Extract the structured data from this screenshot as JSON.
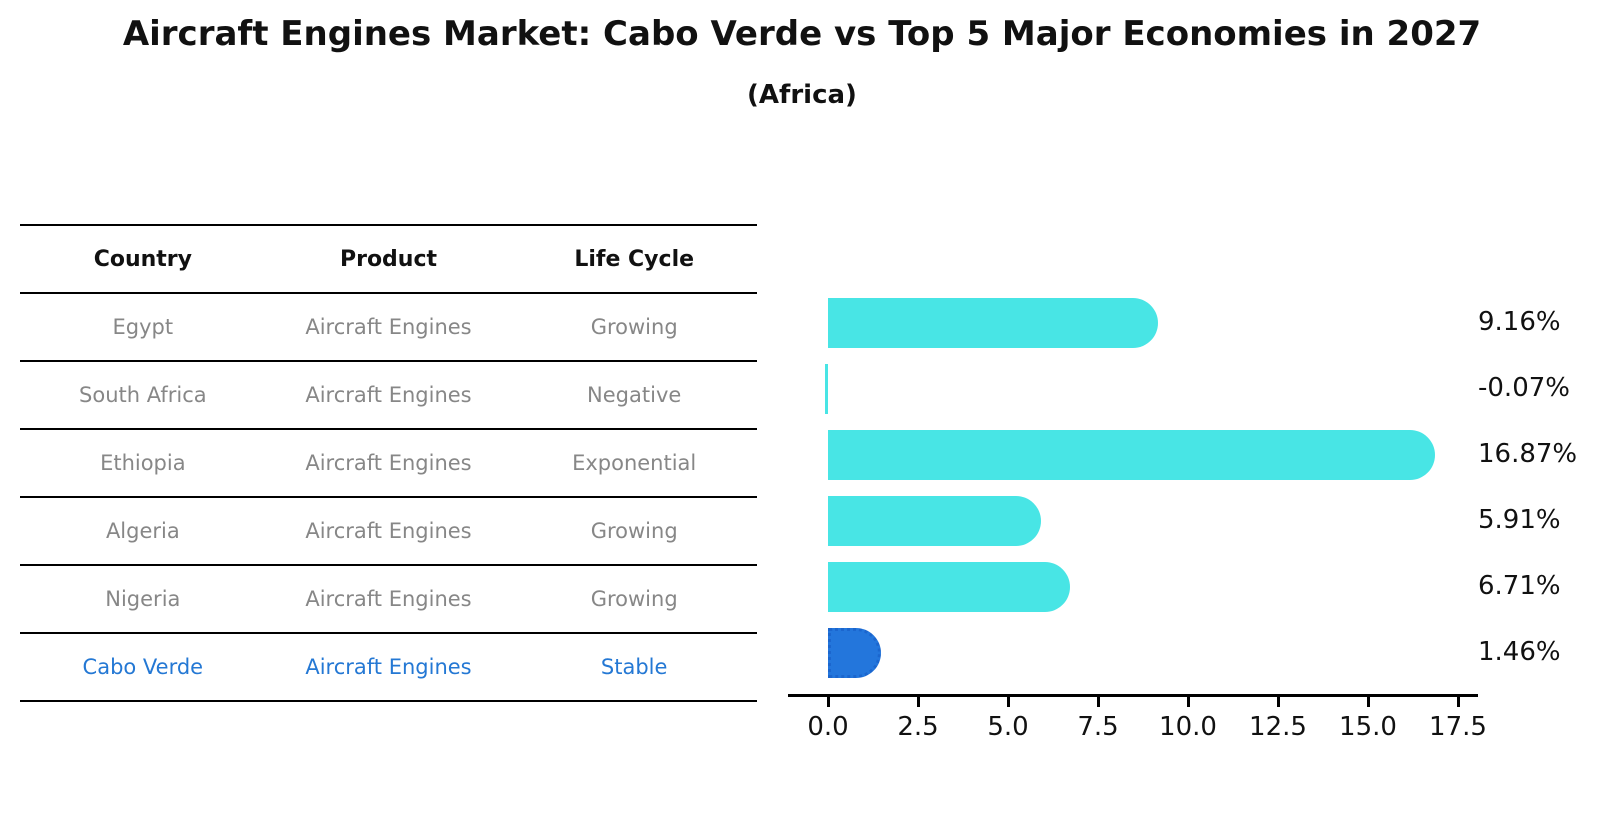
{
  "title": "Aircraft Engines Market: Cabo Verde vs Top 5 Major Economies in 2027",
  "subtitle": "(Africa)",
  "table": {
    "headers": [
      "Country",
      "Product",
      "Life Cycle"
    ],
    "rows": [
      {
        "country": "Egypt",
        "product": "Aircraft Engines",
        "life_cycle": "Growing",
        "highlight": false
      },
      {
        "country": "South Africa",
        "product": "Aircraft Engines",
        "life_cycle": "Negative",
        "highlight": false
      },
      {
        "country": "Ethiopia",
        "product": "Aircraft Engines",
        "life_cycle": "Exponential",
        "highlight": false
      },
      {
        "country": "Algeria",
        "product": "Aircraft Engines",
        "life_cycle": "Growing",
        "highlight": false
      },
      {
        "country": "Nigeria",
        "product": "Aircraft Engines",
        "life_cycle": "Growing",
        "highlight": false
      },
      {
        "country": "Cabo Verde",
        "product": "Aircraft Engines",
        "life_cycle": "Stable",
        "highlight": true
      }
    ]
  },
  "chart_data": {
    "type": "bar",
    "orientation": "horizontal",
    "title": "",
    "xlabel": "",
    "ylabel": "",
    "categories": [
      "Egypt",
      "South Africa",
      "Ethiopia",
      "Algeria",
      "Nigeria",
      "Cabo Verde"
    ],
    "values": [
      9.16,
      -0.07,
      16.87,
      5.91,
      6.71,
      1.46
    ],
    "value_labels": [
      "9.16%",
      "-0.07%",
      "16.87%",
      "5.91%",
      "6.71%",
      "1.46%"
    ],
    "x_ticks": [
      "0.0",
      "2.5",
      "5.0",
      "7.5",
      "10.0",
      "12.5",
      "15.0",
      "17.5"
    ],
    "xlim": [
      -1.1,
      18.0
    ],
    "grid": false,
    "legend": "none",
    "highlight_index": 5
  },
  "colors": {
    "bar_cyan": "#48E5E5",
    "bar_blue": "#2376DC",
    "bar_blue_edge": "#1b66ce",
    "text_blue": "#2478d4",
    "cell_gray": "#878787",
    "line_black": "#000000"
  }
}
